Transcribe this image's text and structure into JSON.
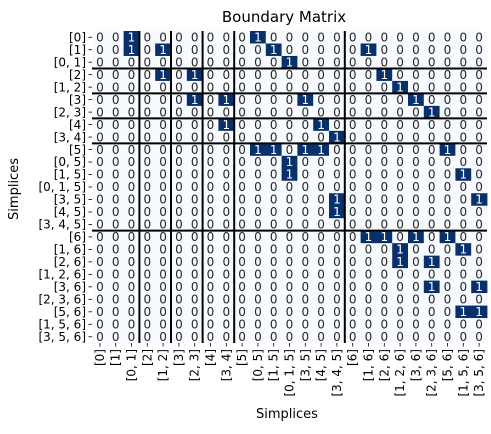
{
  "chart_data": {
    "type": "heatmap",
    "title": "Boundary Matrix",
    "xlabel": "Simplices",
    "ylabel": "Simplices",
    "labels": [
      "[0]",
      "[1]",
      "[0, 1]",
      "[2]",
      "[1, 2]",
      "[3]",
      "[2, 3]",
      "[4]",
      "[3, 4]",
      "[5]",
      "[0, 5]",
      "[1, 5]",
      "[0, 1, 5]",
      "[3, 5]",
      "[4, 5]",
      "[3, 4, 5]",
      "[6]",
      "[1, 6]",
      "[2, 6]",
      "[1, 2, 6]",
      "[3, 6]",
      "[2, 3, 6]",
      "[5, 6]",
      "[1, 5, 6]",
      "[3, 5, 6]"
    ],
    "matrix": [
      [
        0,
        0,
        1,
        0,
        0,
        0,
        0,
        0,
        0,
        0,
        1,
        0,
        0,
        0,
        0,
        0,
        0,
        0,
        0,
        0,
        0,
        0,
        0,
        0,
        0
      ],
      [
        0,
        0,
        1,
        0,
        1,
        0,
        0,
        0,
        0,
        0,
        0,
        1,
        0,
        0,
        0,
        0,
        0,
        1,
        0,
        0,
        0,
        0,
        0,
        0,
        0
      ],
      [
        0,
        0,
        0,
        0,
        0,
        0,
        0,
        0,
        0,
        0,
        0,
        0,
        1,
        0,
        0,
        0,
        0,
        0,
        0,
        0,
        0,
        0,
        0,
        0,
        0
      ],
      [
        0,
        0,
        0,
        0,
        1,
        0,
        1,
        0,
        0,
        0,
        0,
        0,
        0,
        0,
        0,
        0,
        0,
        0,
        1,
        0,
        0,
        0,
        0,
        0,
        0
      ],
      [
        0,
        0,
        0,
        0,
        0,
        0,
        0,
        0,
        0,
        0,
        0,
        0,
        0,
        0,
        0,
        0,
        0,
        0,
        0,
        1,
        0,
        0,
        0,
        0,
        0
      ],
      [
        0,
        0,
        0,
        0,
        0,
        0,
        1,
        0,
        1,
        0,
        0,
        0,
        0,
        1,
        0,
        0,
        0,
        0,
        0,
        0,
        1,
        0,
        0,
        0,
        0
      ],
      [
        0,
        0,
        0,
        0,
        0,
        0,
        0,
        0,
        0,
        0,
        0,
        0,
        0,
        0,
        0,
        0,
        0,
        0,
        0,
        0,
        0,
        1,
        0,
        0,
        0
      ],
      [
        0,
        0,
        0,
        0,
        0,
        0,
        0,
        0,
        1,
        0,
        0,
        0,
        0,
        0,
        1,
        0,
        0,
        0,
        0,
        0,
        0,
        0,
        0,
        0,
        0
      ],
      [
        0,
        0,
        0,
        0,
        0,
        0,
        0,
        0,
        0,
        0,
        0,
        0,
        0,
        0,
        0,
        1,
        0,
        0,
        0,
        0,
        0,
        0,
        0,
        0,
        0
      ],
      [
        0,
        0,
        0,
        0,
        0,
        0,
        0,
        0,
        0,
        0,
        1,
        1,
        0,
        1,
        1,
        0,
        0,
        0,
        0,
        0,
        0,
        0,
        1,
        0,
        0
      ],
      [
        0,
        0,
        0,
        0,
        0,
        0,
        0,
        0,
        0,
        0,
        0,
        0,
        1,
        0,
        0,
        0,
        0,
        0,
        0,
        0,
        0,
        0,
        0,
        0,
        0
      ],
      [
        0,
        0,
        0,
        0,
        0,
        0,
        0,
        0,
        0,
        0,
        0,
        0,
        1,
        0,
        0,
        0,
        0,
        0,
        0,
        0,
        0,
        0,
        0,
        1,
        0
      ],
      [
        0,
        0,
        0,
        0,
        0,
        0,
        0,
        0,
        0,
        0,
        0,
        0,
        0,
        0,
        0,
        0,
        0,
        0,
        0,
        0,
        0,
        0,
        0,
        0,
        0
      ],
      [
        0,
        0,
        0,
        0,
        0,
        0,
        0,
        0,
        0,
        0,
        0,
        0,
        0,
        0,
        0,
        1,
        0,
        0,
        0,
        0,
        0,
        0,
        0,
        0,
        1
      ],
      [
        0,
        0,
        0,
        0,
        0,
        0,
        0,
        0,
        0,
        0,
        0,
        0,
        0,
        0,
        0,
        1,
        0,
        0,
        0,
        0,
        0,
        0,
        0,
        0,
        0
      ],
      [
        0,
        0,
        0,
        0,
        0,
        0,
        0,
        0,
        0,
        0,
        0,
        0,
        0,
        0,
        0,
        0,
        0,
        0,
        0,
        0,
        0,
        0,
        0,
        0,
        0
      ],
      [
        0,
        0,
        0,
        0,
        0,
        0,
        0,
        0,
        0,
        0,
        0,
        0,
        0,
        0,
        0,
        0,
        0,
        1,
        1,
        0,
        1,
        0,
        1,
        0,
        0
      ],
      [
        0,
        0,
        0,
        0,
        0,
        0,
        0,
        0,
        0,
        0,
        0,
        0,
        0,
        0,
        0,
        0,
        0,
        0,
        0,
        1,
        0,
        0,
        0,
        1,
        0
      ],
      [
        0,
        0,
        0,
        0,
        0,
        0,
        0,
        0,
        0,
        0,
        0,
        0,
        0,
        0,
        0,
        0,
        0,
        0,
        0,
        1,
        0,
        1,
        0,
        0,
        0
      ],
      [
        0,
        0,
        0,
        0,
        0,
        0,
        0,
        0,
        0,
        0,
        0,
        0,
        0,
        0,
        0,
        0,
        0,
        0,
        0,
        0,
        0,
        0,
        0,
        0,
        0
      ],
      [
        0,
        0,
        0,
        0,
        0,
        0,
        0,
        0,
        0,
        0,
        0,
        0,
        0,
        0,
        0,
        0,
        0,
        0,
        0,
        0,
        0,
        1,
        0,
        0,
        1
      ],
      [
        0,
        0,
        0,
        0,
        0,
        0,
        0,
        0,
        0,
        0,
        0,
        0,
        0,
        0,
        0,
        0,
        0,
        0,
        0,
        0,
        0,
        0,
        0,
        0,
        0
      ],
      [
        0,
        0,
        0,
        0,
        0,
        0,
        0,
        0,
        0,
        0,
        0,
        0,
        0,
        0,
        0,
        0,
        0,
        0,
        0,
        0,
        0,
        0,
        0,
        1,
        1
      ],
      [
        0,
        0,
        0,
        0,
        0,
        0,
        0,
        0,
        0,
        0,
        0,
        0,
        0,
        0,
        0,
        0,
        0,
        0,
        0,
        0,
        0,
        0,
        0,
        0,
        0
      ],
      [
        0,
        0,
        0,
        0,
        0,
        0,
        0,
        0,
        0,
        0,
        0,
        0,
        0,
        0,
        0,
        0,
        0,
        0,
        0,
        0,
        0,
        0,
        0,
        0,
        0
      ]
    ],
    "block_boundaries": [
      0,
      3,
      5,
      7,
      9,
      16
    ],
    "colors": {
      "zero_fill": "#f7fbff",
      "one_fill": "#08306b",
      "zero_text": "#262626",
      "one_text": "#ffffff",
      "separator": "#000000"
    }
  }
}
